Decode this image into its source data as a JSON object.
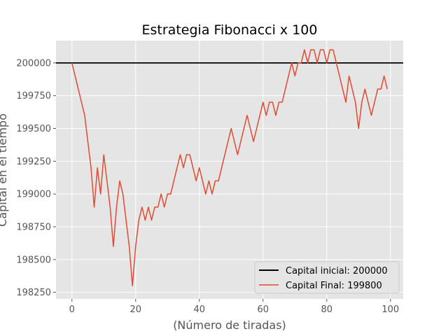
{
  "chart_data": {
    "type": "line",
    "title": "Estrategia Fibonacci x 100",
    "xlabel": "(Número de tiradas)",
    "ylabel": "Capital en el tiempo",
    "xlim": [
      -5,
      104
    ],
    "ylim": [
      198200,
      200170
    ],
    "xticks": [
      0,
      20,
      40,
      60,
      80,
      100
    ],
    "yticks": [
      198250,
      198500,
      198750,
      199000,
      199250,
      199500,
      199750,
      200000
    ],
    "grid": true,
    "legend_position": "lower-right",
    "series": [
      {
        "name": "Capital inicial: 200000",
        "color": "#000000",
        "kind": "hline",
        "y": 200000
      },
      {
        "name": "Capital Final: 199800",
        "color": "#e24a33",
        "kind": "line",
        "x": [
          0,
          1,
          2,
          3,
          4,
          5,
          6,
          7,
          8,
          9,
          10,
          11,
          12,
          13,
          14,
          15,
          16,
          17,
          18,
          19,
          20,
          21,
          22,
          23,
          24,
          25,
          26,
          27,
          28,
          29,
          30,
          31,
          32,
          33,
          34,
          35,
          36,
          37,
          38,
          39,
          40,
          41,
          42,
          43,
          44,
          45,
          46,
          47,
          48,
          49,
          50,
          51,
          52,
          53,
          54,
          55,
          56,
          57,
          58,
          59,
          60,
          61,
          62,
          63,
          64,
          65,
          66,
          67,
          68,
          69,
          70,
          71,
          72,
          73,
          74,
          75,
          76,
          77,
          78,
          79,
          80,
          81,
          82,
          83,
          84,
          85,
          86,
          87,
          88,
          89,
          90,
          91,
          92,
          93,
          94,
          95,
          96,
          97,
          98,
          99
        ],
        "values": [
          200000,
          199900,
          199800,
          199700,
          199600,
          199400,
          199200,
          198900,
          199200,
          199000,
          199300,
          199100,
          198900,
          198600,
          198900,
          199100,
          199000,
          198800,
          198600,
          198300,
          198600,
          198800,
          198900,
          198800,
          198900,
          198800,
          198900,
          198900,
          199000,
          198900,
          199000,
          199000,
          199100,
          199200,
          199300,
          199200,
          199300,
          199300,
          199200,
          199100,
          199200,
          199100,
          199000,
          199100,
          199000,
          199100,
          199100,
          199200,
          199300,
          199400,
          199500,
          199400,
          199300,
          199400,
          199500,
          199600,
          199500,
          199400,
          199500,
          199600,
          199700,
          199600,
          199700,
          199700,
          199600,
          199700,
          199700,
          199800,
          199900,
          200000,
          199900,
          200000,
          200000,
          200100,
          200000,
          200100,
          200100,
          200000,
          200100,
          200100,
          200000,
          200100,
          200100,
          200000,
          199900,
          199800,
          199700,
          199900,
          199800,
          199700,
          199500,
          199700,
          199800,
          199700,
          199600,
          199700,
          199800,
          199800,
          199900,
          199800
        ]
      }
    ]
  }
}
